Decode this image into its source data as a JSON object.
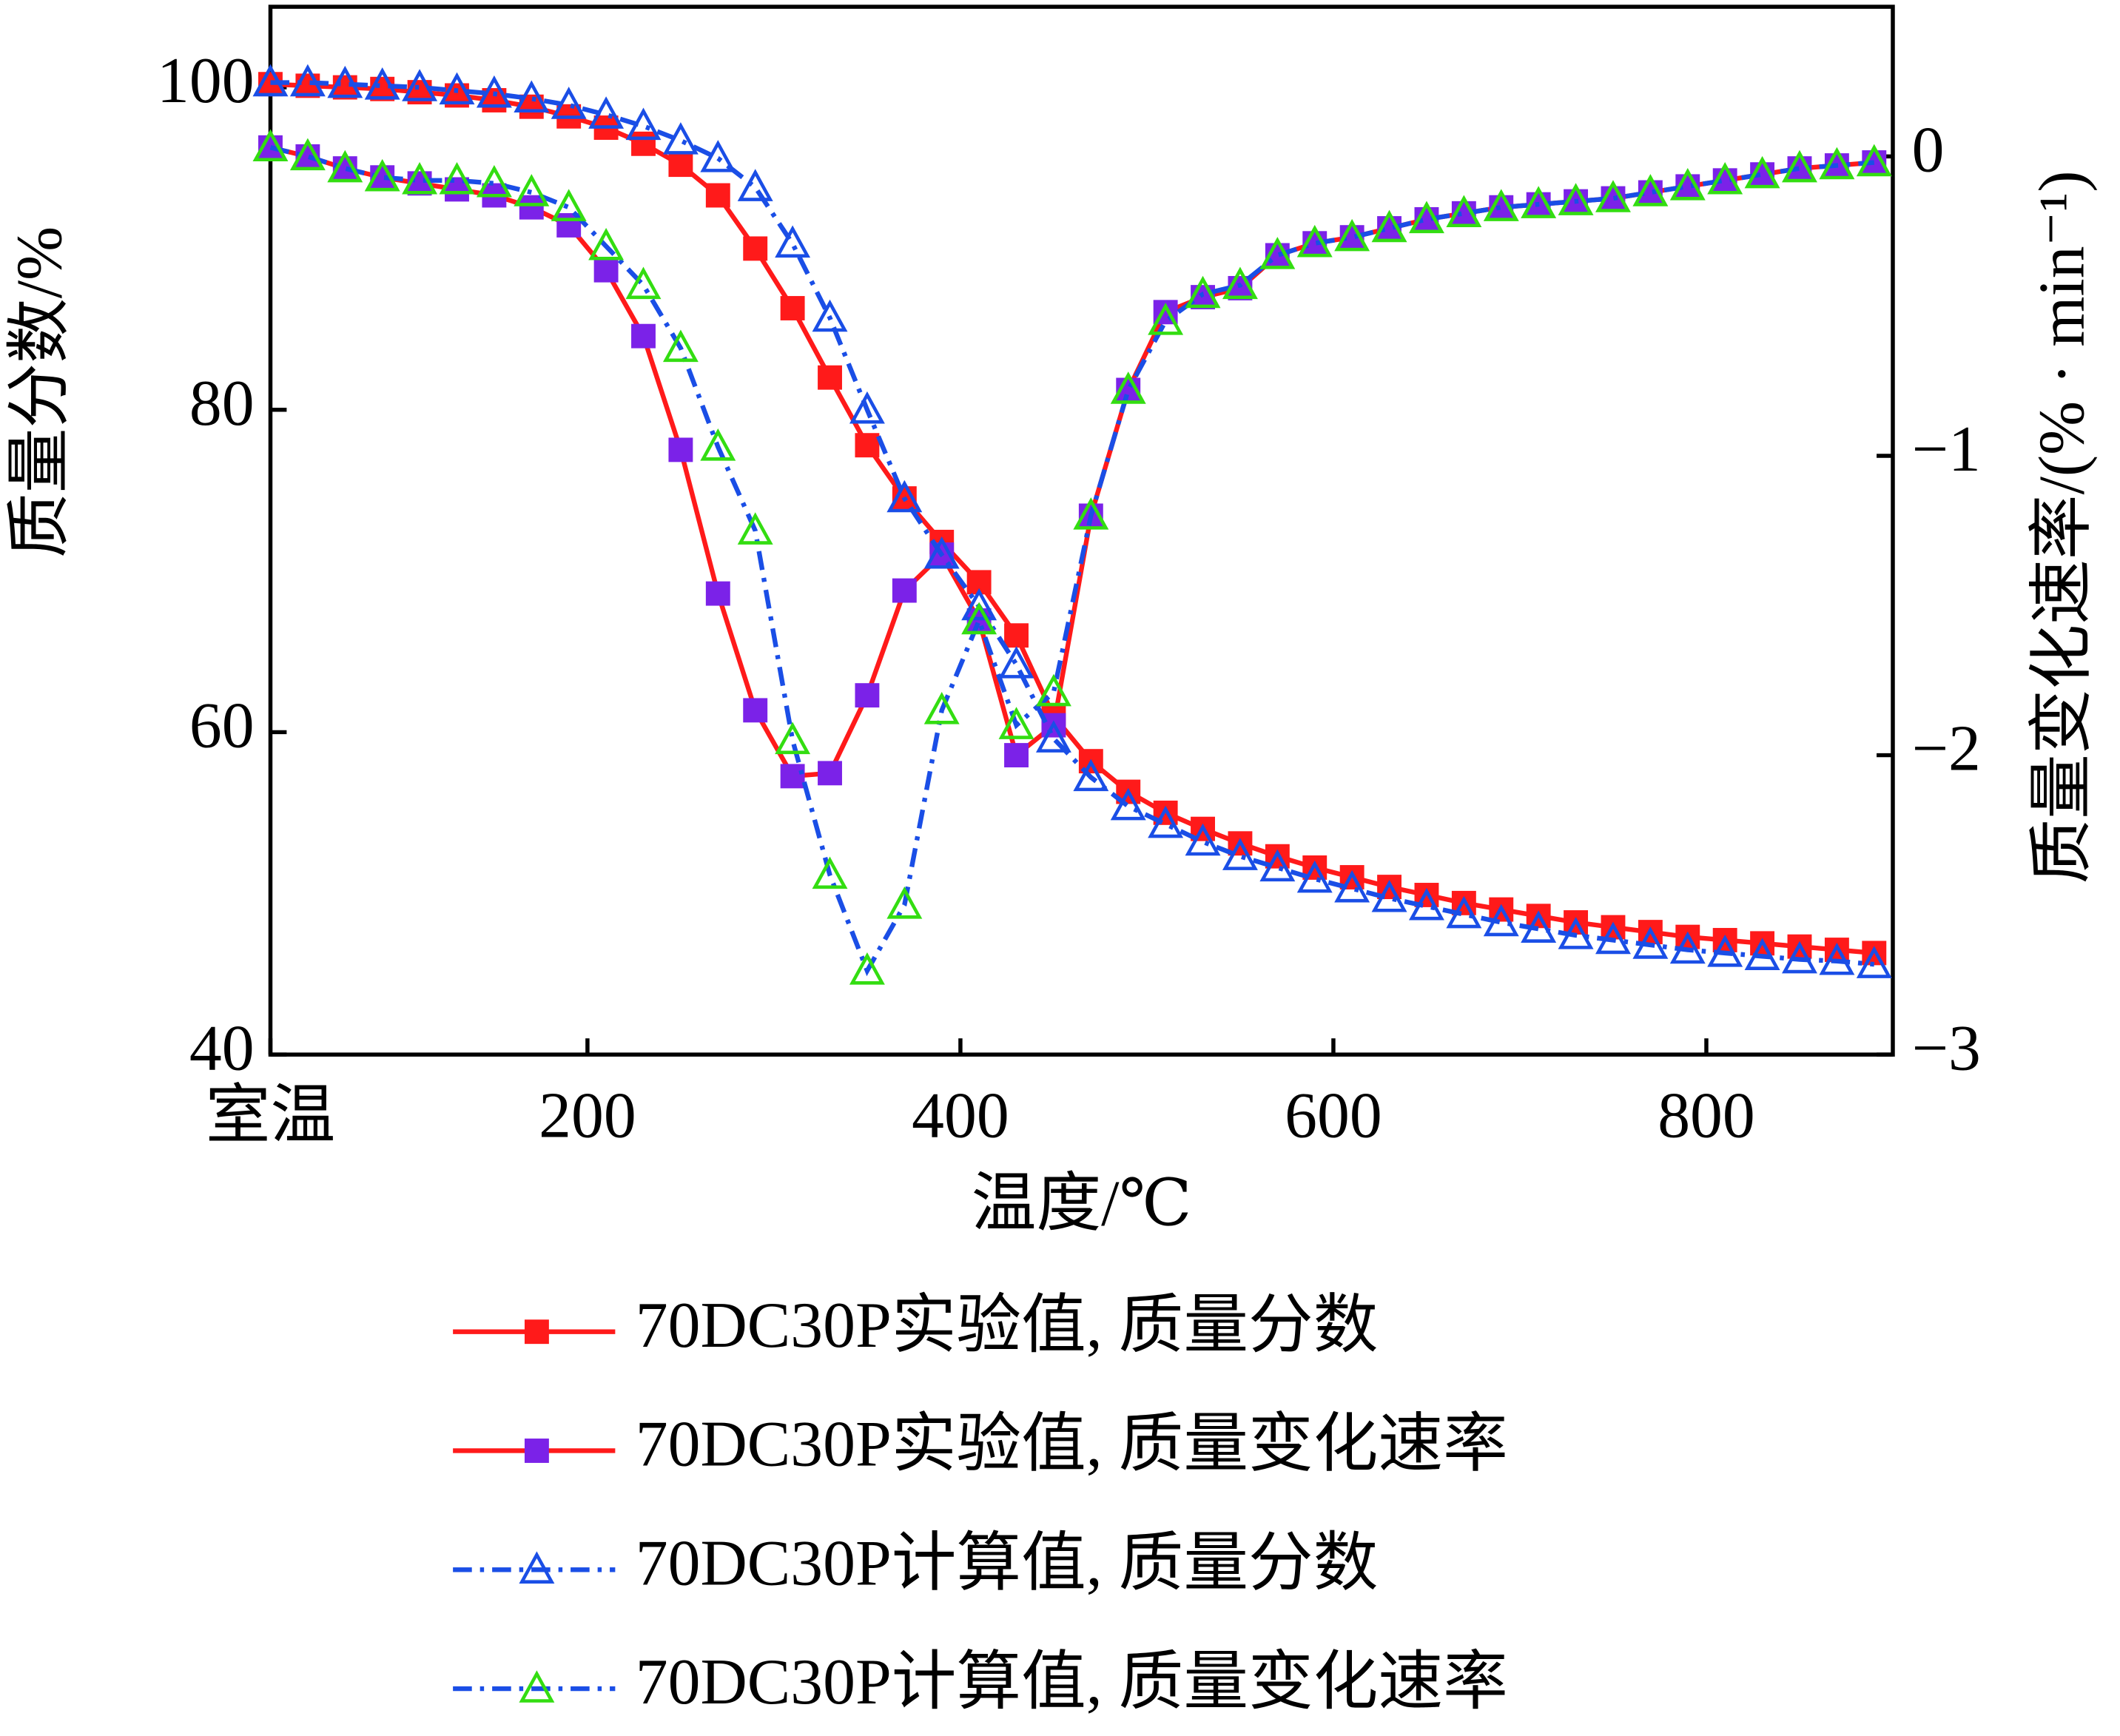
{
  "chart_data": {
    "type": "line",
    "x_label": "温度/℃",
    "y_label": "质量分数/%",
    "y2_label": "质量变化速率/(% · min⁻¹)",
    "x": [
      30,
      50,
      70,
      90,
      110,
      130,
      150,
      170,
      190,
      210,
      230,
      250,
      270,
      290,
      310,
      330,
      350,
      370,
      390,
      410,
      430,
      450,
      470,
      490,
      510,
      530,
      550,
      570,
      590,
      610,
      630,
      650,
      670,
      690,
      710,
      730,
      750,
      770,
      790,
      810,
      830,
      850,
      870,
      890
    ],
    "xlim": [
      30,
      900
    ],
    "xticks": [
      {
        "value": 30,
        "label": "室温"
      },
      200,
      400,
      600,
      800
    ],
    "ylim": [
      40,
      105
    ],
    "yticks": [
      40,
      60,
      80,
      100
    ],
    "y2lim": [
      -3,
      0.5
    ],
    "y2ticks": [
      {
        "value": -3,
        "label": "−3"
      },
      {
        "value": -2,
        "label": "−2"
      },
      {
        "value": -1,
        "label": "−1"
      },
      0
    ],
    "series": [
      {
        "name": "70DC30P实验值, 质量分数",
        "color": "#ff1a1a",
        "marker_color": "#ff1a1a",
        "marker": "square",
        "dash": "solid",
        "values": [
          100.2,
          100.1,
          100,
          99.9,
          99.7,
          99.5,
          99.2,
          98.8,
          98.2,
          97.5,
          96.5,
          95.2,
          93.3,
          90,
          86.3,
          82,
          77.8,
          74.5,
          71.8,
          69.3,
          66,
          61,
          58.2,
          56.3,
          55,
          54,
          53.1,
          52.3,
          51.6,
          51,
          50.4,
          49.9,
          49.4,
          49,
          48.6,
          48.2,
          47.9,
          47.6,
          47.3,
          47.1,
          46.9,
          46.7,
          46.5,
          46.3
        ]
      },
      {
        "name": "70DC30P实验值, 质量变化速率",
        "color": "#ff1a1a",
        "marker_color": "#7b22e8",
        "marker": "square",
        "dash": "solid",
        "axis": "y2",
        "values": [
          0.03,
          0,
          -0.04,
          -0.07,
          -0.09,
          -0.11,
          -0.13,
          -0.17,
          -0.23,
          -0.38,
          -0.6,
          -0.98,
          -1.46,
          -1.85,
          -2.07,
          -2.06,
          -1.8,
          -1.45,
          -1.33,
          -1.55,
          -2,
          -1.9,
          -1.2,
          -0.78,
          -0.52,
          -0.47,
          -0.44,
          -0.33,
          -0.29,
          -0.27,
          -0.24,
          -0.21,
          -0.19,
          -0.17,
          -0.16,
          -0.15,
          -0.14,
          -0.12,
          -0.1,
          -0.08,
          -0.06,
          -0.04,
          -0.03,
          -0.02
        ]
      },
      {
        "name": "70DC30P计算值, 质量分数",
        "color": "#1a4ee6",
        "marker_color": "#1a4ee6",
        "marker": "triangle",
        "dash": "dashdot",
        "values": [
          100.3,
          100.3,
          100.2,
          100.1,
          100,
          99.8,
          99.6,
          99.3,
          98.9,
          98.3,
          97.6,
          96.7,
          95.6,
          93.8,
          90.3,
          85.7,
          80,
          74.5,
          71,
          67.8,
          64.2,
          59.6,
          57.2,
          55.4,
          54.3,
          53.2,
          52.3,
          51.6,
          50.9,
          50.3,
          49.7,
          49.2,
          48.7,
          48.2,
          47.8,
          47.4,
          47.1,
          46.8,
          46.5,
          46.3,
          46.1,
          45.9,
          45.8,
          45.6
        ]
      },
      {
        "name": "70DC30P计算值, 质量变化速率",
        "color": "#1a4ee6",
        "marker_color": "#33dd11",
        "marker": "triangle",
        "dash": "dashdot",
        "axis": "y2",
        "values": [
          0.03,
          0,
          -0.04,
          -0.07,
          -0.08,
          -0.08,
          -0.09,
          -0.12,
          -0.17,
          -0.3,
          -0.43,
          -0.64,
          -0.97,
          -1.25,
          -1.95,
          -2.4,
          -2.72,
          -2.5,
          -1.85,
          -1.55,
          -1.9,
          -1.79,
          -1.2,
          -0.78,
          -0.55,
          -0.46,
          -0.43,
          -0.33,
          -0.29,
          -0.27,
          -0.24,
          -0.21,
          -0.19,
          -0.17,
          -0.16,
          -0.15,
          -0.14,
          -0.12,
          -0.1,
          -0.08,
          -0.06,
          -0.04,
          -0.03,
          -0.02
        ]
      }
    ]
  }
}
